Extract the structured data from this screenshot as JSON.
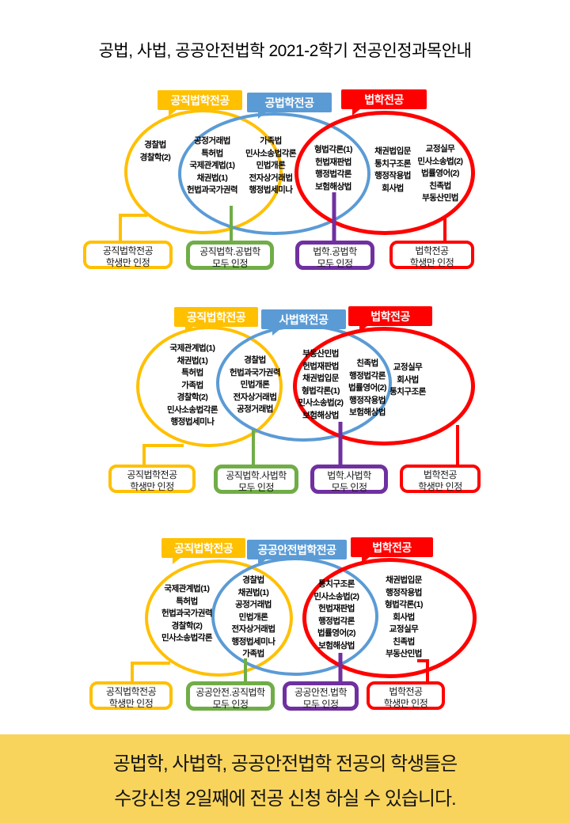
{
  "page_title": "공법, 사법, 공공안전법학 2021-2학기 전공인정과목안내",
  "colors": {
    "yellow": "#FFC000",
    "blue": "#5B9BD5",
    "red": "#FF0000",
    "green": "#70AD47",
    "purple": "#7030A0",
    "banner_background": "#F9D45C"
  },
  "sections": [
    {
      "headers": [
        {
          "label": "공직법학전공"
        },
        {
          "label": "공법학전공"
        },
        {
          "label": "법학전공"
        }
      ],
      "regions": {
        "left_only": [
          [
            "경찰법",
            "경찰학(2)"
          ]
        ],
        "left_mid": [
          [
            "공정거래법",
            "특허법",
            "국제관계법(1)",
            "채권법(1)",
            "헌법과국가권력"
          ],
          [
            "가족법",
            "민사소송법각론",
            "민법개론",
            "전자상거래법",
            "행정법세미나"
          ]
        ],
        "mid_right": [
          [
            "형법각론(1)",
            "헌법재판법",
            "행정법각론",
            "보험해상법"
          ]
        ],
        "right_only": [
          [
            "채권법입문",
            "통치구조론",
            "행정작용법",
            "회사법"
          ],
          [
            "교정실무",
            "민사소송법(2)",
            "법률영어(2)",
            "친족법",
            "부동산민법"
          ]
        ]
      },
      "callouts": [
        {
          "lines": [
            "공직법학전공",
            "학생만 인정"
          ]
        },
        {
          "lines": [
            "공직법학.공법학",
            "모두 인정"
          ]
        },
        {
          "lines": [
            "법학.공법학",
            "모두 인정"
          ]
        },
        {
          "lines": [
            "법학전공",
            "학생만 인정"
          ]
        }
      ]
    },
    {
      "headers": [
        {
          "label": "공직법학전공"
        },
        {
          "label": "사법학전공"
        },
        {
          "label": "법학전공"
        }
      ],
      "regions": {
        "left_only": [
          [
            "국제관계법(1)",
            "채권법(1)",
            "특허법",
            "가족법",
            "경찰학(2)",
            "민사소송법각론",
            "행정법세미나"
          ]
        ],
        "left_mid": [
          [
            "경찰법",
            "헌법과국가권력",
            "민법개론",
            "전자상거래법",
            "공정거래법"
          ]
        ],
        "mid_right": [
          [
            "부동산민법",
            "헌법재판법",
            "채권법입문",
            "형법각론(1)",
            "민사소송법(2)",
            "보험해상법"
          ],
          [
            "친족법",
            "행정법각론",
            "법률영어(2)",
            "행정작용법",
            "보험해상법"
          ]
        ],
        "right_only": [
          [
            "교정실무",
            "회사법",
            "통치구조론"
          ]
        ]
      },
      "callouts": [
        {
          "lines": [
            "공직법학전공",
            "학생만 인정"
          ]
        },
        {
          "lines": [
            "공직법학.사법학",
            "모두 인정"
          ]
        },
        {
          "lines": [
            "법학.사법학",
            "모두 인정"
          ]
        },
        {
          "lines": [
            "법학전공",
            "학생만 인정"
          ]
        }
      ]
    },
    {
      "headers": [
        {
          "label": "공직법학전공"
        },
        {
          "label": "공공안전법학전공"
        },
        {
          "label": "법학전공"
        }
      ],
      "regions": {
        "left_only": [
          [
            "국제관계법(1)",
            "특허법",
            "헌법과국가권력",
            "경찰학(2)",
            "민사소송법각론"
          ]
        ],
        "left_mid": [
          [
            "경찰법",
            "채권법(1)",
            "공정거래법",
            "민법개론",
            "전자상거래법",
            "행정법세미나",
            "가족법"
          ]
        ],
        "mid_right": [
          [
            "통치구조론",
            "민사소송법(2)",
            "헌법재판법",
            "행정법각론",
            "법률영어(2)",
            "보험해상법"
          ]
        ],
        "right_only": [
          [
            "채권법입문",
            "행정작용법",
            "형법각론(1)",
            "회사법",
            "교정실무",
            "친족법",
            "부동산민법"
          ]
        ]
      },
      "callouts": [
        {
          "lines": [
            "공직법학전공",
            "학생만 인정"
          ]
        },
        {
          "lines": [
            "공공안전.공직법학",
            "모두 인정"
          ]
        },
        {
          "lines": [
            "공공안전.법학",
            "모두 인정"
          ]
        },
        {
          "lines": [
            "법학전공",
            "학생만 인정"
          ]
        }
      ]
    }
  ],
  "banner": {
    "lines": [
      "공법학, 사법학, 공공안전법학 전공의 학생들은",
      "수강신청 2일째에 전공 신청 하실 수 있습니다."
    ]
  }
}
